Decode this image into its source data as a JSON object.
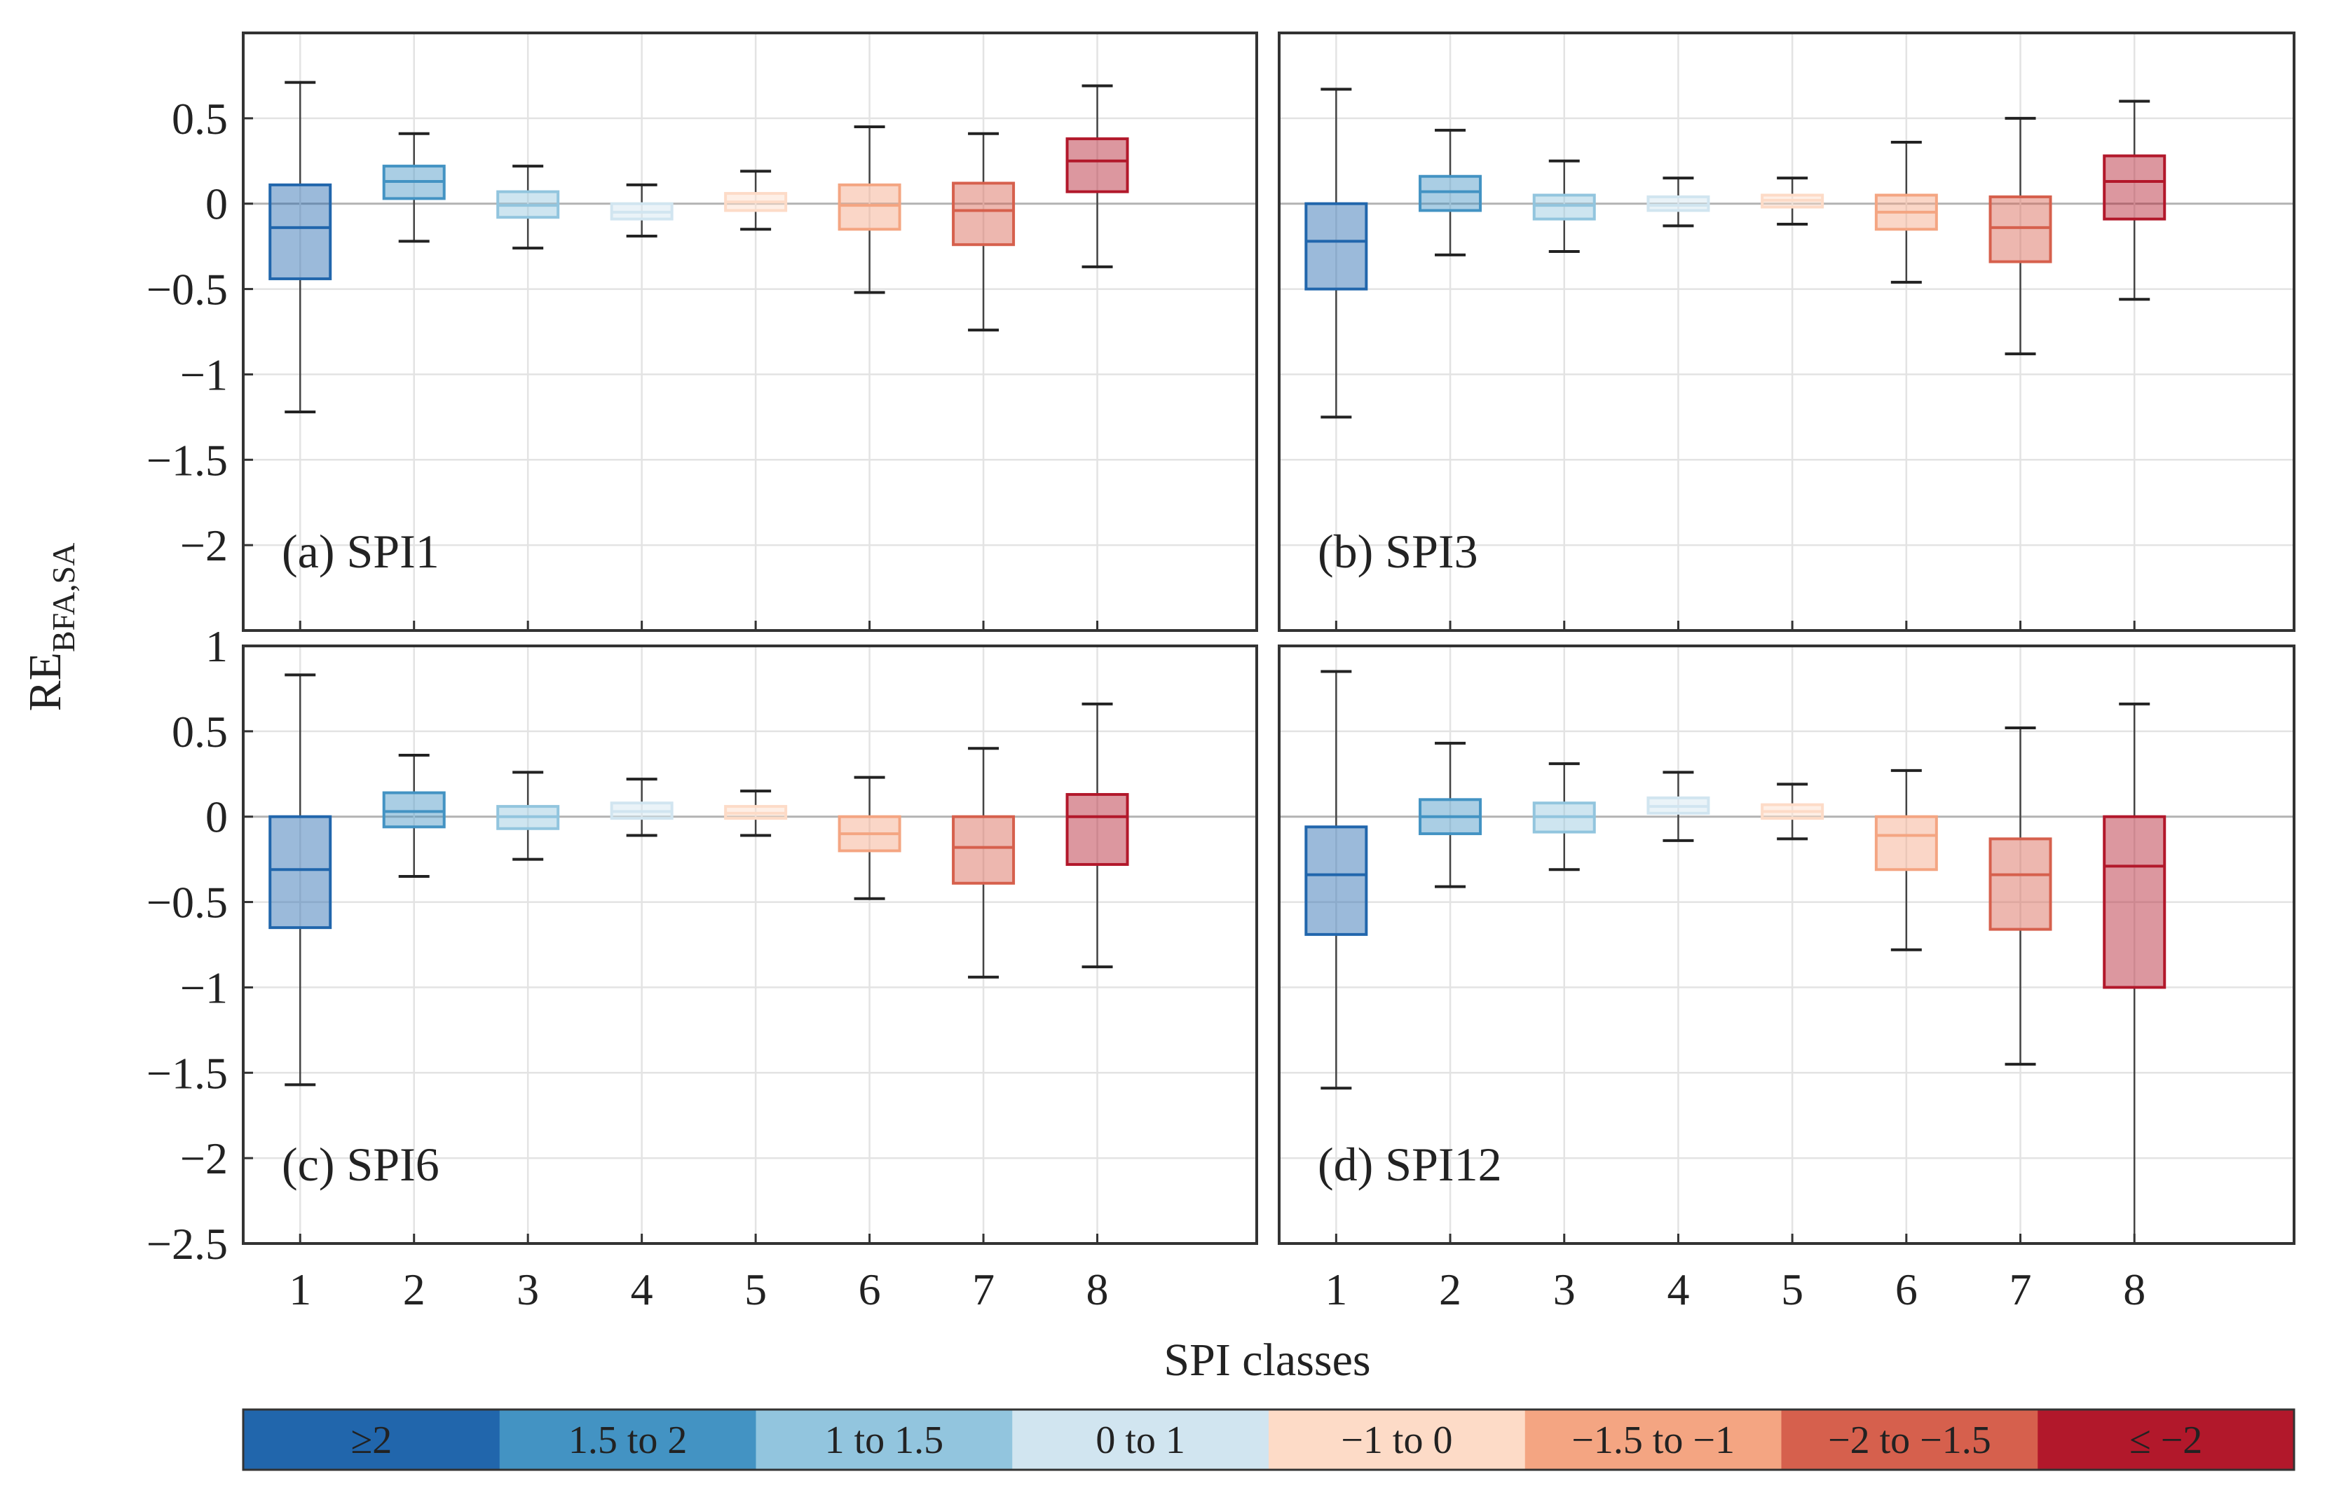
{
  "figure": {
    "ylabel_main": "RE",
    "ylabel_sub": "BFA,SA",
    "xlabel": "SPI classes"
  },
  "colorbar": {
    "items": [
      {
        "label": "≥2",
        "color": "#2166ac"
      },
      {
        "label": "1.5 to 2",
        "color": "#4393c3"
      },
      {
        "label": "1 to 1.5",
        "color": "#92c5de"
      },
      {
        "label": "0 to 1",
        "color": "#d1e5f0"
      },
      {
        "label": "−1 to 0",
        "color": "#fddbc7"
      },
      {
        "label": "−1.5 to −1",
        "color": "#f4a582"
      },
      {
        "label": "−2 to −1.5",
        "color": "#d6604d"
      },
      {
        "label": "≤ −2",
        "color": "#b2182b"
      }
    ]
  },
  "chart_data": [
    {
      "type": "box",
      "label": "(a) SPI1",
      "categories": [
        "1",
        "2",
        "3",
        "4",
        "5",
        "6",
        "7",
        "8"
      ],
      "ylim": [
        -2.5,
        1
      ],
      "yticks": [
        "0.5",
        "0",
        "−0.5",
        "−1",
        "−1.5",
        "−2"
      ],
      "yticks_values": [
        0.5,
        0,
        -0.5,
        -1,
        -1.5,
        -2
      ],
      "grid": true,
      "boxes": [
        {
          "q1": -0.44,
          "median": -0.14,
          "q3": 0.11,
          "whisker_low": -1.22,
          "whisker_high": 0.71
        },
        {
          "q1": 0.03,
          "median": 0.13,
          "q3": 0.22,
          "whisker_low": -0.22,
          "whisker_high": 0.41
        },
        {
          "q1": -0.08,
          "median": -0.01,
          "q3": 0.07,
          "whisker_low": -0.26,
          "whisker_high": 0.22
        },
        {
          "q1": -0.09,
          "median": -0.05,
          "q3": 0.0,
          "whisker_low": -0.19,
          "whisker_high": 0.11
        },
        {
          "q1": -0.04,
          "median": 0.01,
          "q3": 0.06,
          "whisker_low": -0.15,
          "whisker_high": 0.19
        },
        {
          "q1": -0.15,
          "median": -0.01,
          "q3": 0.11,
          "whisker_low": -0.52,
          "whisker_high": 0.45
        },
        {
          "q1": -0.24,
          "median": -0.04,
          "q3": 0.12,
          "whisker_low": -0.74,
          "whisker_high": 0.41
        },
        {
          "q1": 0.07,
          "median": 0.25,
          "q3": 0.38,
          "whisker_low": -0.37,
          "whisker_high": 0.69
        }
      ]
    },
    {
      "type": "box",
      "label": "(b) SPI3",
      "categories": [
        "1",
        "2",
        "3",
        "4",
        "5",
        "6",
        "7",
        "8"
      ],
      "ylim": [
        -2.5,
        1
      ],
      "grid": true,
      "boxes": [
        {
          "q1": -0.5,
          "median": -0.22,
          "q3": 0.0,
          "whisker_low": -1.25,
          "whisker_high": 0.67
        },
        {
          "q1": -0.04,
          "median": 0.07,
          "q3": 0.16,
          "whisker_low": -0.3,
          "whisker_high": 0.43
        },
        {
          "q1": -0.09,
          "median": -0.01,
          "q3": 0.05,
          "whisker_low": -0.28,
          "whisker_high": 0.25
        },
        {
          "q1": -0.04,
          "median": -0.01,
          "q3": 0.04,
          "whisker_low": -0.13,
          "whisker_high": 0.15
        },
        {
          "q1": -0.02,
          "median": 0.02,
          "q3": 0.05,
          "whisker_low": -0.12,
          "whisker_high": 0.15
        },
        {
          "q1": -0.15,
          "median": -0.05,
          "q3": 0.05,
          "whisker_low": -0.46,
          "whisker_high": 0.36
        },
        {
          "q1": -0.34,
          "median": -0.14,
          "q3": 0.04,
          "whisker_low": -0.88,
          "whisker_high": 0.5
        },
        {
          "q1": -0.09,
          "median": 0.13,
          "q3": 0.28,
          "whisker_low": -0.56,
          "whisker_high": 0.6
        }
      ]
    },
    {
      "type": "box",
      "label": "(c) SPI6",
      "categories": [
        "1",
        "2",
        "3",
        "4",
        "5",
        "6",
        "7",
        "8"
      ],
      "ylim": [
        -2.5,
        1
      ],
      "yticks": [
        "1",
        "0.5",
        "0",
        "−0.5",
        "−1",
        "−1.5",
        "−2",
        "−2.5"
      ],
      "yticks_values": [
        1,
        0.5,
        0,
        -0.5,
        -1,
        -1.5,
        -2,
        -2.5
      ],
      "grid": true,
      "boxes": [
        {
          "q1": -0.65,
          "median": -0.31,
          "q3": 0.0,
          "whisker_low": -1.57,
          "whisker_high": 0.83
        },
        {
          "q1": -0.06,
          "median": 0.03,
          "q3": 0.14,
          "whisker_low": -0.35,
          "whisker_high": 0.36
        },
        {
          "q1": -0.07,
          "median": 0.0,
          "q3": 0.06,
          "whisker_low": -0.25,
          "whisker_high": 0.26
        },
        {
          "q1": -0.01,
          "median": 0.03,
          "q3": 0.08,
          "whisker_low": -0.11,
          "whisker_high": 0.22
        },
        {
          "q1": -0.01,
          "median": 0.02,
          "q3": 0.06,
          "whisker_low": -0.11,
          "whisker_high": 0.15
        },
        {
          "q1": -0.2,
          "median": -0.1,
          "q3": 0.0,
          "whisker_low": -0.48,
          "whisker_high": 0.23
        },
        {
          "q1": -0.39,
          "median": -0.18,
          "q3": 0.0,
          "whisker_low": -0.94,
          "whisker_high": 0.4
        },
        {
          "q1": -0.28,
          "median": 0.0,
          "q3": 0.13,
          "whisker_low": -0.88,
          "whisker_high": 0.66
        }
      ]
    },
    {
      "type": "box",
      "label": "(d) SPI12",
      "categories": [
        "1",
        "2",
        "3",
        "4",
        "5",
        "6",
        "7",
        "8"
      ],
      "ylim": [
        -2.5,
        1
      ],
      "grid": true,
      "boxes": [
        {
          "q1": -0.69,
          "median": -0.34,
          "q3": -0.06,
          "whisker_low": -1.59,
          "whisker_high": 0.85
        },
        {
          "q1": -0.1,
          "median": 0.0,
          "q3": 0.1,
          "whisker_low": -0.41,
          "whisker_high": 0.43
        },
        {
          "q1": -0.09,
          "median": 0.0,
          "q3": 0.08,
          "whisker_low": -0.31,
          "whisker_high": 0.31
        },
        {
          "q1": 0.02,
          "median": 0.06,
          "q3": 0.11,
          "whisker_low": -0.14,
          "whisker_high": 0.26
        },
        {
          "q1": -0.01,
          "median": 0.03,
          "q3": 0.07,
          "whisker_low": -0.13,
          "whisker_high": 0.19
        },
        {
          "q1": -0.31,
          "median": -0.11,
          "q3": 0.0,
          "whisker_low": -0.78,
          "whisker_high": 0.27
        },
        {
          "q1": -0.66,
          "median": -0.34,
          "q3": -0.13,
          "whisker_low": -1.45,
          "whisker_high": 0.52
        },
        {
          "q1": -1.0,
          "median": -0.29,
          "q3": 0.0,
          "whisker_low": -2.5,
          "whisker_high": 0.66
        }
      ]
    }
  ]
}
